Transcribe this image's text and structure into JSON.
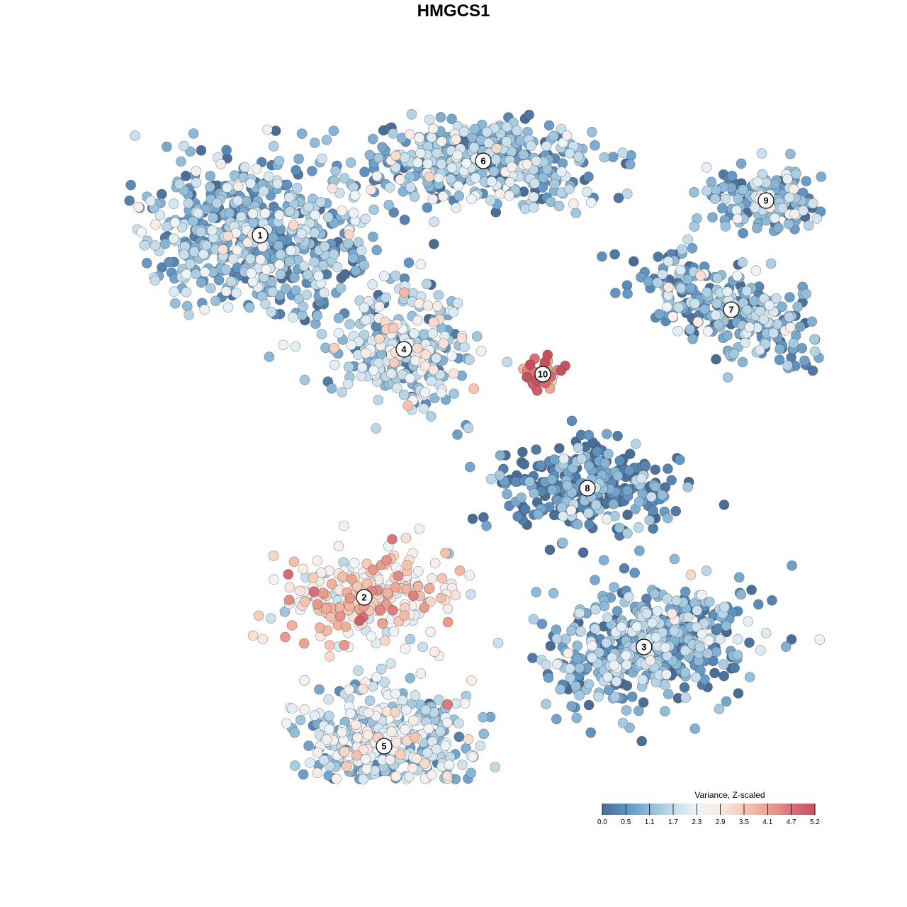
{
  "title": "HMGCS1",
  "chart_data": {
    "type": "scatter",
    "title": "HMGCS1",
    "colour_variable": "Variance, Z-scaled",
    "colour_scale": {
      "title": "Variance, Z-scaled",
      "min": 0.0,
      "max": 5.2,
      "ticks": [
        "0.0",
        "0.5",
        "1.1",
        "1.7",
        "2.3",
        "2.9",
        "3.5",
        "4.1",
        "4.7",
        "5.2"
      ],
      "colors": [
        "#4a6d96",
        "#5f93c3",
        "#8ebbd8",
        "#c3dceb",
        "#eef4f8",
        "#faeae3",
        "#f6c7b3",
        "#eba28e",
        "#d9727a",
        "#c8505d"
      ]
    },
    "axes_visible": false,
    "grid": false,
    "legend_position": "bottom-right",
    "clusters": [
      {
        "label": "1",
        "x": -1.95,
        "y": 2.2,
        "mean": 1.1
      },
      {
        "label": "2",
        "x": -0.9,
        "y": -1.45,
        "mean": 3.0
      },
      {
        "label": "3",
        "x": 1.92,
        "y": -1.95,
        "mean": 0.9
      },
      {
        "label": "4",
        "x": -0.5,
        "y": 1.05,
        "mean": 1.6
      },
      {
        "label": "5",
        "x": -0.7,
        "y": -2.95,
        "mean": 1.7
      },
      {
        "label": "6",
        "x": 0.3,
        "y": 2.95,
        "mean": 1.2
      },
      {
        "label": "7",
        "x": 2.8,
        "y": 1.45,
        "mean": 1.0
      },
      {
        "label": "8",
        "x": 1.35,
        "y": -0.35,
        "mean": 0.4
      },
      {
        "label": "9",
        "x": 3.15,
        "y": 2.55,
        "mean": 1.1
      },
      {
        "label": "10",
        "x": 0.9,
        "y": 0.8,
        "mean": 4.6
      }
    ]
  }
}
